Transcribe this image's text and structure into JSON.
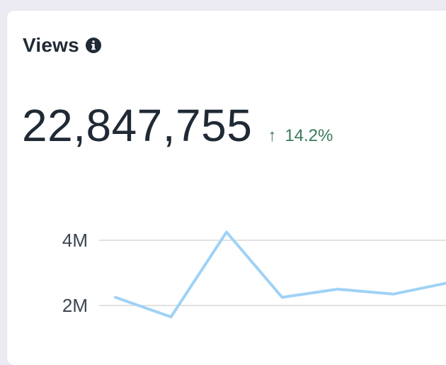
{
  "widget": {
    "title": "Views",
    "info_icon": "info-icon",
    "value": "22,847,755",
    "delta_arrow": "↑",
    "delta": "14.2%",
    "delta_color": "#3a7a5a"
  },
  "chart_data": {
    "type": "line",
    "y_ticks": [
      "4M",
      "2M"
    ],
    "y_tick_values": [
      4000000,
      2000000
    ],
    "series": [
      {
        "color": "#9fd2f5",
        "values": [
          2250000,
          1650000,
          4250000,
          2250000,
          2500000,
          2350000,
          2700000
        ]
      }
    ],
    "grid": true
  }
}
